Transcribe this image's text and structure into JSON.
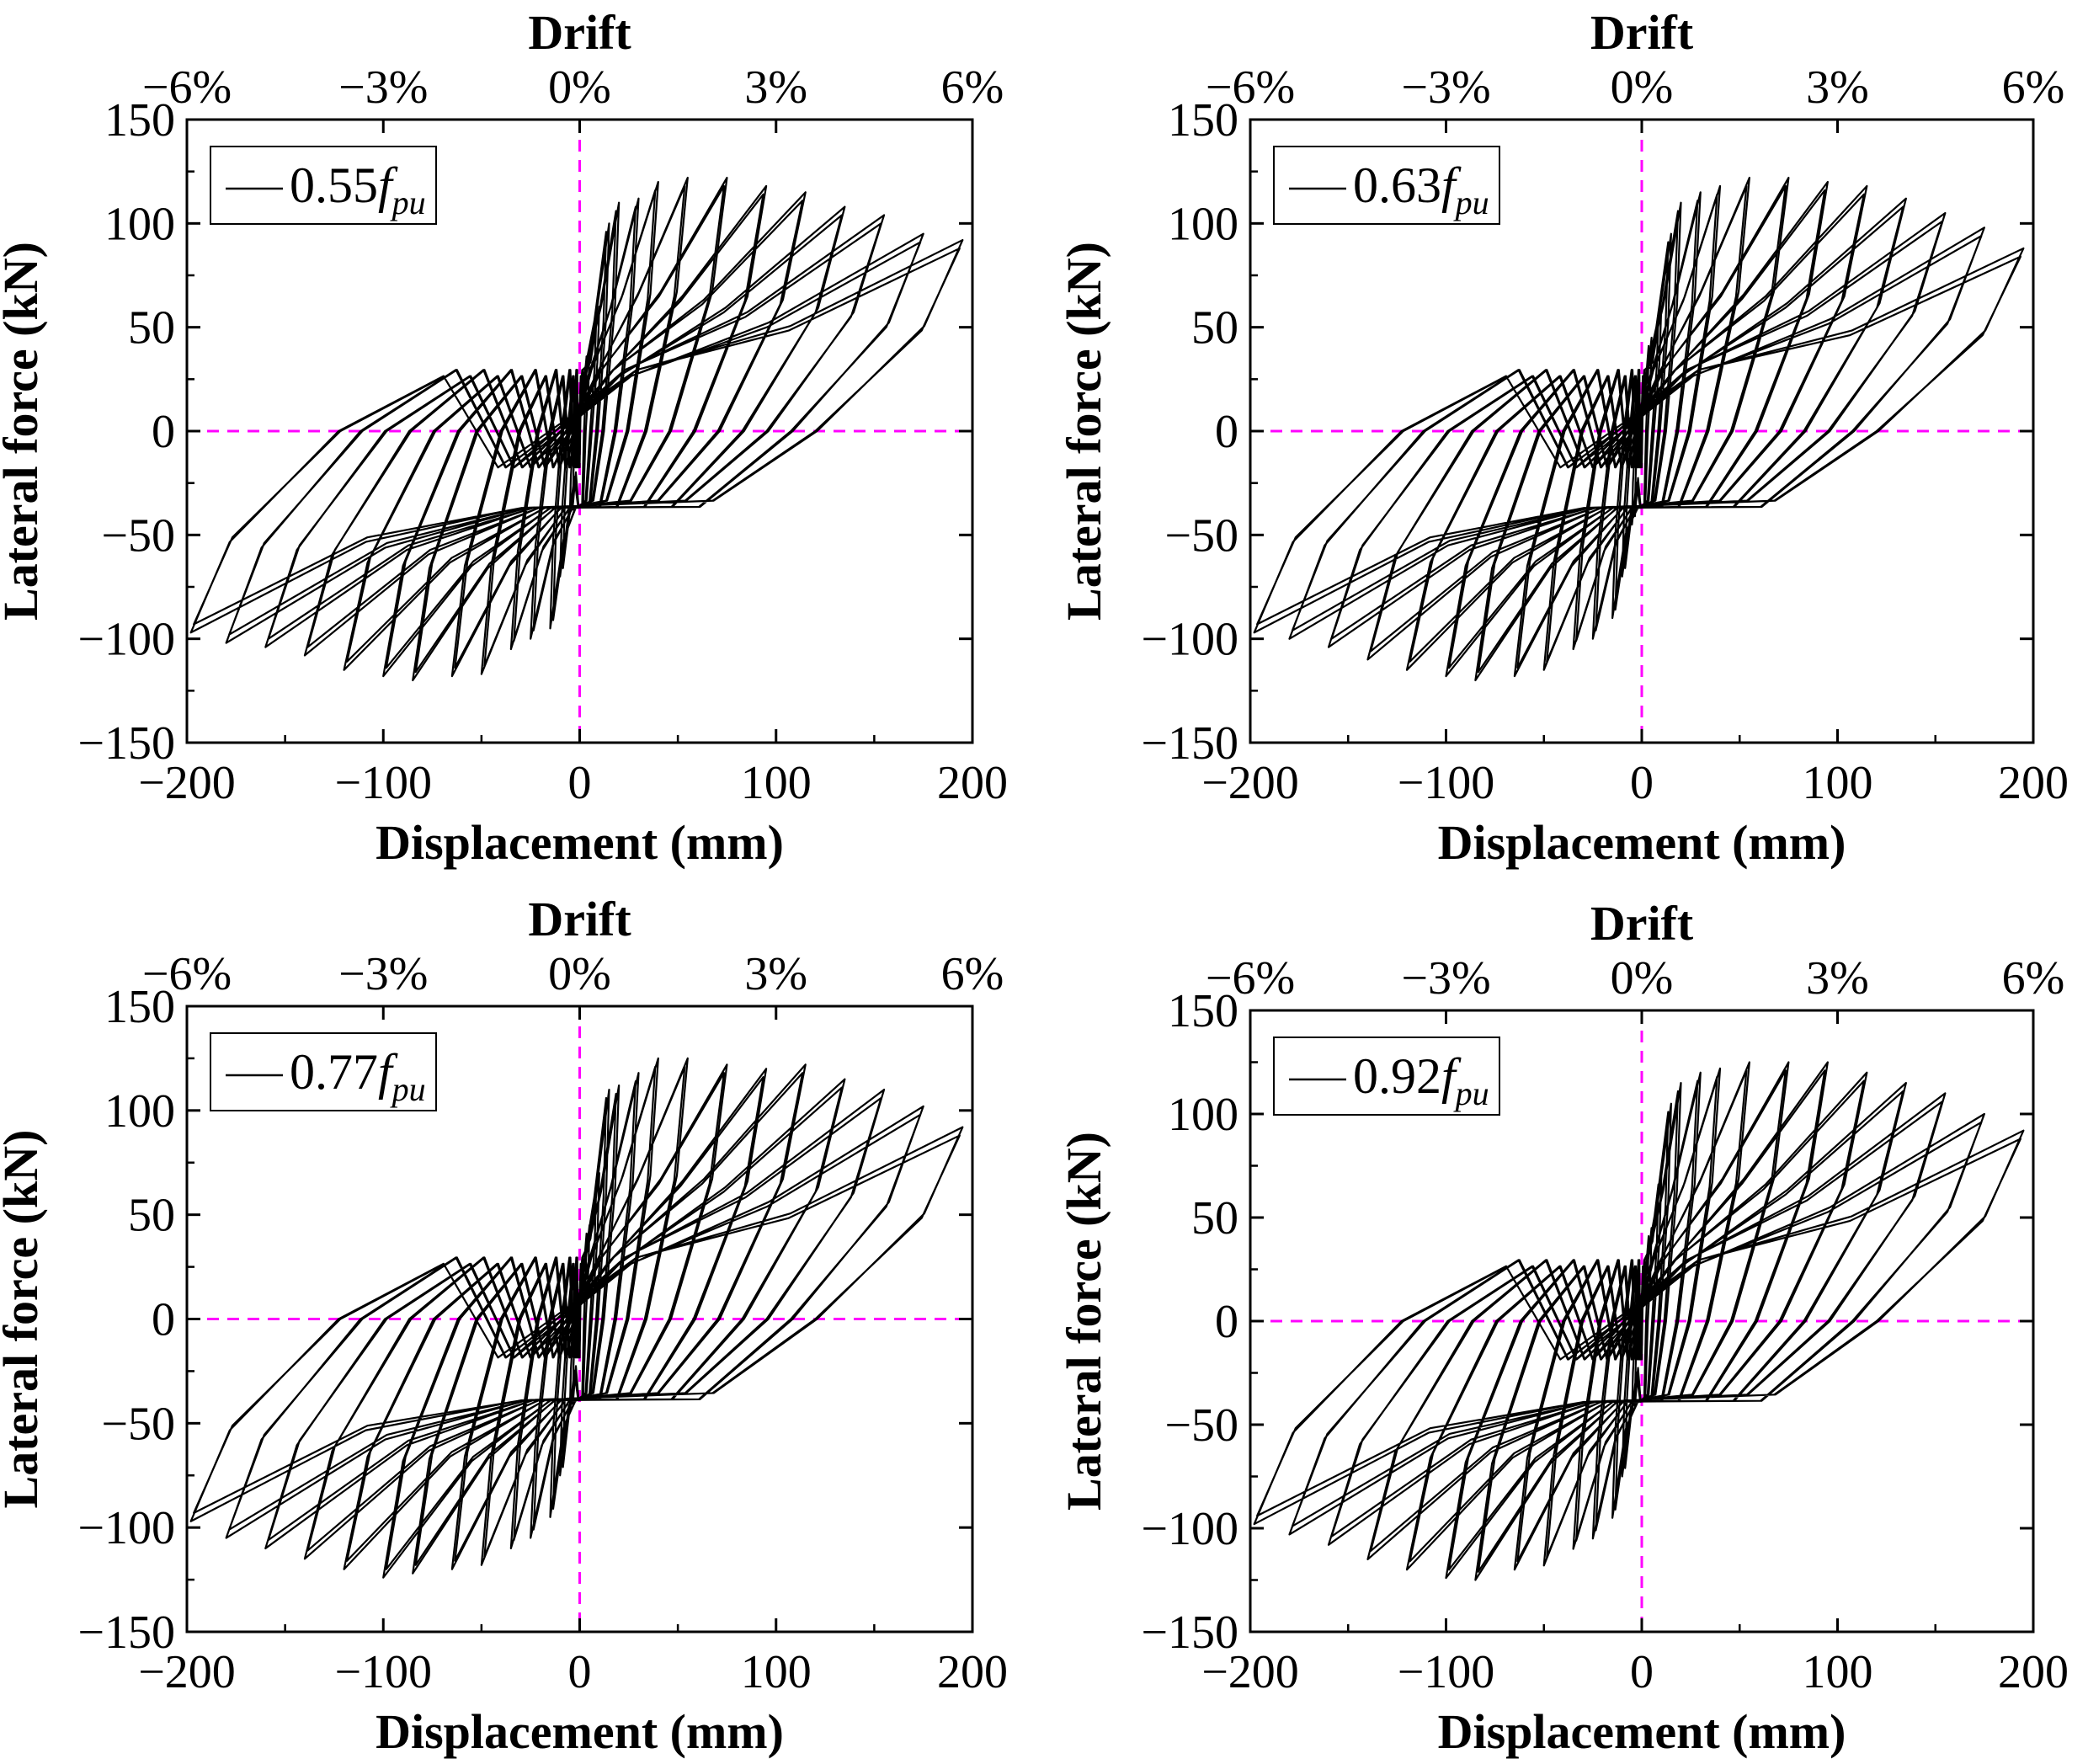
{
  "colors": {
    "curve": "#000000",
    "reference": "#ff00ff",
    "frame": "#000000",
    "background": "#ffffff"
  },
  "chart_data": [
    {
      "type": "line",
      "panel": "top-left",
      "legend": {
        "prefix": "0.55",
        "symbol": "f",
        "subscript": "pu",
        "placement": "top-left"
      },
      "xlabel": "Displacement (mm)",
      "ylabel": "Lateral force (kN)",
      "x2label": "Drift",
      "xlim": [
        -200,
        200
      ],
      "ylim": [
        -150,
        150
      ],
      "xticks": [
        -200,
        -100,
        0,
        100,
        200
      ],
      "xtick_labels": [
        "−200",
        "−100",
        "0",
        "100",
        "200"
      ],
      "yticks": [
        -150,
        -100,
        -50,
        0,
        50,
        100,
        150
      ],
      "ytick_labels": [
        "−150",
        "−100",
        "−50",
        "0",
        "50",
        "100",
        "150"
      ],
      "drift_ticks": [
        -6,
        -3,
        0,
        3,
        6
      ],
      "drift_tick_labels": [
        "−6%",
        "−3%",
        "0%",
        "3%",
        "6%"
      ],
      "reference_lines": {
        "x": 0,
        "y": 0,
        "style": "dashed"
      },
      "series": [
        {
          "name": "0.55fpu",
          "peaks_pos": [
            [
              5,
              40
            ],
            [
              10,
              60
            ],
            [
              15,
              100
            ],
            [
              20,
              110
            ],
            [
              30,
              112
            ],
            [
              40,
              120
            ],
            [
              55,
              122
            ],
            [
              75,
              122
            ],
            [
              95,
              118
            ],
            [
              115,
              115
            ],
            [
              135,
              108
            ],
            [
              155,
              104
            ],
            [
              175,
              95
            ],
            [
              195,
              92
            ]
          ],
          "peaks_neg": [
            [
              -5,
              -40
            ],
            [
              -10,
              -70
            ],
            [
              -15,
              -95
            ],
            [
              -25,
              -100
            ],
            [
              -35,
              -105
            ],
            [
              -50,
              -117
            ],
            [
              -65,
              -118
            ],
            [
              -85,
              -120
            ],
            [
              -100,
              -118
            ],
            [
              -120,
              -115
            ],
            [
              -140,
              -108
            ],
            [
              -160,
              -104
            ],
            [
              -180,
              -102
            ],
            [
              -198,
              -97
            ]
          ],
          "pinch_pos": 28,
          "pinch_neg": -35
        }
      ]
    },
    {
      "type": "line",
      "panel": "top-right",
      "legend": {
        "prefix": "0.63",
        "symbol": "f",
        "subscript": "pu",
        "placement": "top-left"
      },
      "xlabel": "Displacement (mm)",
      "ylabel": "Lateral force (kN)",
      "x2label": "Drift",
      "xlim": [
        -200,
        200
      ],
      "ylim": [
        -150,
        150
      ],
      "xticks": [
        -200,
        -100,
        0,
        100,
        200
      ],
      "xtick_labels": [
        "−200",
        "−100",
        "0",
        "100",
        "200"
      ],
      "yticks": [
        -150,
        -100,
        -50,
        0,
        50,
        100,
        150
      ],
      "ytick_labels": [
        "−150",
        "−100",
        "−50",
        "0",
        "50",
        "100",
        "150"
      ],
      "drift_ticks": [
        -6,
        -3,
        0,
        3,
        6
      ],
      "drift_tick_labels": [
        "−6%",
        "−3%",
        "0%",
        "3%",
        "6%"
      ],
      "reference_lines": {
        "x": 0,
        "y": 0,
        "style": "dashed"
      },
      "series": [
        {
          "name": "0.63fpu",
          "peaks_pos": [
            [
              5,
              45
            ],
            [
              10,
              60
            ],
            [
              15,
              95
            ],
            [
              20,
              110
            ],
            [
              30,
              115
            ],
            [
              40,
              118
            ],
            [
              55,
              122
            ],
            [
              75,
              122
            ],
            [
              95,
              120
            ],
            [
              115,
              118
            ],
            [
              135,
              112
            ],
            [
              155,
              105
            ],
            [
              175,
              98
            ],
            [
              195,
              88
            ]
          ],
          "peaks_neg": [
            [
              -5,
              -45
            ],
            [
              -10,
              -70
            ],
            [
              -15,
              -90
            ],
            [
              -25,
              -100
            ],
            [
              -35,
              -105
            ],
            [
              -50,
              -115
            ],
            [
              -65,
              -118
            ],
            [
              -85,
              -120
            ],
            [
              -100,
              -118
            ],
            [
              -120,
              -115
            ],
            [
              -140,
              -110
            ],
            [
              -160,
              -104
            ],
            [
              -180,
              -100
            ],
            [
              -198,
              -97
            ]
          ],
          "pinch_pos": 28,
          "pinch_neg": -35
        }
      ]
    },
    {
      "type": "line",
      "panel": "bottom-left",
      "legend": {
        "prefix": "0.77",
        "symbol": "f",
        "subscript": "pu",
        "placement": "top-left"
      },
      "xlabel": "Displacement (mm)",
      "ylabel": "Lateral force (kN)",
      "x2label": "Drift",
      "xlim": [
        -200,
        200
      ],
      "ylim": [
        -150,
        150
      ],
      "xticks": [
        -200,
        -100,
        0,
        100,
        200
      ],
      "xtick_labels": [
        "−200",
        "−100",
        "0",
        "100",
        "200"
      ],
      "yticks": [
        -150,
        -100,
        -50,
        0,
        50,
        100,
        150
      ],
      "ytick_labels": [
        "−150",
        "−100",
        "−50",
        "0",
        "50",
        "100",
        "150"
      ],
      "drift_ticks": [
        -6,
        -3,
        0,
        3,
        6
      ],
      "drift_tick_labels": [
        "−6%",
        "−3%",
        "0%",
        "3%",
        "6%"
      ],
      "reference_lines": {
        "x": 0,
        "y": 0,
        "style": "dashed"
      },
      "series": [
        {
          "name": "0.77fpu",
          "peaks_pos": [
            [
              5,
              45
            ],
            [
              10,
              70
            ],
            [
              15,
              110
            ],
            [
              20,
              112
            ],
            [
              30,
              118
            ],
            [
              40,
              125
            ],
            [
              55,
              125
            ],
            [
              75,
              122
            ],
            [
              95,
              120
            ],
            [
              115,
              122
            ],
            [
              135,
              115
            ],
            [
              155,
              110
            ],
            [
              175,
              102
            ],
            [
              195,
              92
            ]
          ],
          "peaks_neg": [
            [
              -5,
              -45
            ],
            [
              -10,
              -75
            ],
            [
              -15,
              -95
            ],
            [
              -25,
              -105
            ],
            [
              -35,
              -110
            ],
            [
              -50,
              -118
            ],
            [
              -65,
              -120
            ],
            [
              -85,
              -122
            ],
            [
              -100,
              -124
            ],
            [
              -120,
              -120
            ],
            [
              -140,
              -115
            ],
            [
              -160,
              -110
            ],
            [
              -180,
              -105
            ],
            [
              -198,
              -97
            ]
          ],
          "pinch_pos": 28,
          "pinch_neg": -37
        }
      ]
    },
    {
      "type": "line",
      "panel": "bottom-right",
      "legend": {
        "prefix": "0.92",
        "symbol": "f",
        "subscript": "pu",
        "placement": "top-left"
      },
      "xlabel": "Displacement (mm)",
      "ylabel": "Lateral force (kN)",
      "x2label": "Drift",
      "xlim": [
        -200,
        200
      ],
      "ylim": [
        -150,
        150
      ],
      "xticks": [
        -200,
        -100,
        0,
        100,
        200
      ],
      "xtick_labels": [
        "−200",
        "−100",
        "0",
        "100",
        "200"
      ],
      "yticks": [
        -150,
        -100,
        -50,
        0,
        50,
        100,
        150
      ],
      "ytick_labels": [
        "−150",
        "−100",
        "−50",
        "0",
        "50",
        "100",
        "150"
      ],
      "drift_ticks": [
        -6,
        -3,
        0,
        3,
        6
      ],
      "drift_tick_labels": [
        "−6%",
        "−3%",
        "0%",
        "3%",
        "6%"
      ],
      "reference_lines": {
        "x": 0,
        "y": 0,
        "style": "dashed"
      },
      "series": [
        {
          "name": "0.92fpu",
          "peaks_pos": [
            [
              5,
              45
            ],
            [
              10,
              70
            ],
            [
              15,
              105
            ],
            [
              20,
              115
            ],
            [
              30,
              120
            ],
            [
              40,
              122
            ],
            [
              55,
              125
            ],
            [
              75,
              125
            ],
            [
              95,
              125
            ],
            [
              115,
              120
            ],
            [
              135,
              115
            ],
            [
              155,
              110
            ],
            [
              175,
              100
            ],
            [
              195,
              92
            ]
          ],
          "peaks_neg": [
            [
              -5,
              -45
            ],
            [
              -10,
              -75
            ],
            [
              -15,
              -95
            ],
            [
              -25,
              -105
            ],
            [
              -35,
              -110
            ],
            [
              -50,
              -118
            ],
            [
              -65,
              -120
            ],
            [
              -85,
              -125
            ],
            [
              -100,
              -124
            ],
            [
              -120,
              -120
            ],
            [
              -140,
              -115
            ],
            [
              -160,
              -108
            ],
            [
              -180,
              -103
            ],
            [
              -198,
              -98
            ]
          ],
          "pinch_pos": 28,
          "pinch_neg": -37
        }
      ]
    }
  ]
}
